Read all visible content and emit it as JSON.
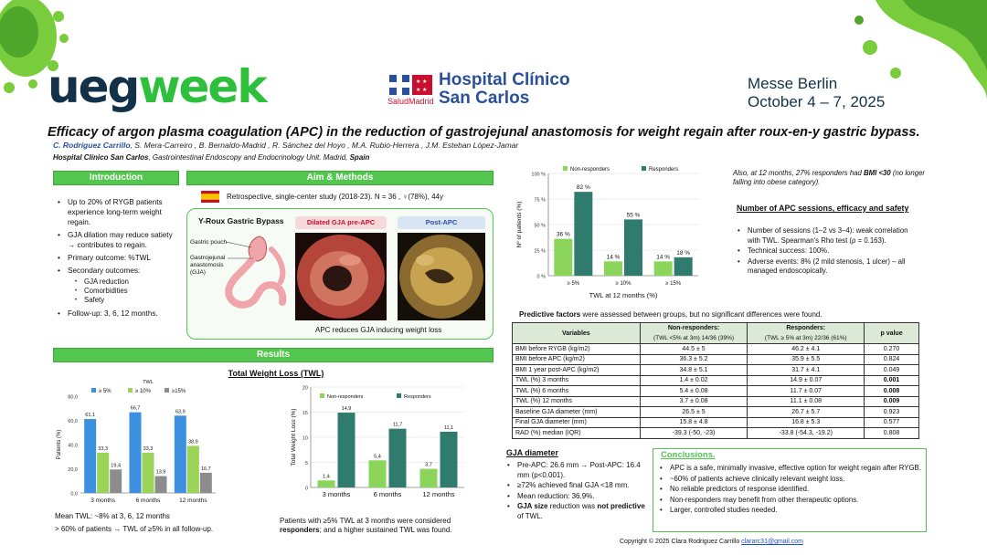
{
  "header": {
    "logo_part1": "ueg",
    "logo_part2": "week",
    "hospital_line1": "Hospital Clínico",
    "hospital_line2": "San Carlos",
    "hospital_sub": "SaludMadrid",
    "event_line1": "Messe Berlin",
    "event_line2": "October 4 – 7, 2025"
  },
  "title": "Efficacy of argon plasma coagulation (APC) in the reduction of gastrojejunal anastomosis for weight regain after roux-en-y gastric bypass.",
  "authors": {
    "first": "C. Rodríguez Carrillo",
    "rest": ", S. Mera-Carreiro , B. Bernaldo-Madrid , R. Sánchez del Hoyo , M.A. Rubio-Herrera , J.M. Esteban López-Jamar"
  },
  "affiliation": {
    "hospital": "Hospital Clínico San Carlos",
    "middle": ", Gastrointestinal Endoscopy and Endocrinology Unit. Madrid, ",
    "country": "Spain"
  },
  "intro": {
    "heading": "Introduction",
    "bullets": [
      "Up to 20% of RYGB patients experience long-term weight regain.",
      "GJA dilation may reduce satiety → contributes to regain.",
      "Primary outcome: %TWL",
      "Secondary outcomes:"
    ],
    "sub_bullets": [
      "GJA reduction",
      "Comorbidities",
      "Safety"
    ],
    "followup": "Follow-up: 3, 6, 12 months."
  },
  "aims": {
    "heading": "Aim & Methods",
    "text": "Retrospective, single-center study (2018-23). N = 36 , ♀(78%), 44y",
    "figure_label1": "Y-Roux Gastric Bypass",
    "figure_label2": "Dilated GJA pre-APC",
    "figure_label3": "Post-APC",
    "pouch_label": "Gastric pouch",
    "gja_label": "Gastrojejunal anastomosis (GJA)",
    "caption": "APC reduces GJA inducing weight loss"
  },
  "results": {
    "heading": "Results",
    "twl_title": "Total Weight Loss (TWL)",
    "mean_twl": "Mean TWL: ~8% at 3, 6, 12 months",
    "gt60": "> 60% of patients → TWL of ≥5% in all follow-up.",
    "responders_note_1": "Patients with ≥5% TWL at 3 months were considered",
    "responders_note_bold": "responders",
    "responders_note_2": "; and a higher sustained TWL was found."
  },
  "chart_data": [
    {
      "type": "bar",
      "title": "TWL",
      "categories": [
        "3 months",
        "6 months",
        "12 months"
      ],
      "series": [
        {
          "name": "≥ 5%",
          "values": [
            61.1,
            66.7,
            63.9
          ],
          "color": "#3d8fe0"
        },
        {
          "name": "≥ 10%",
          "values": [
            33.3,
            33.3,
            38.9
          ],
          "color": "#9ad356"
        },
        {
          "name": "≥15%",
          "values": [
            19.4,
            13.9,
            16.7
          ],
          "color": "#8c8c8c"
        }
      ],
      "ylabel": "Patients (%)",
      "ylim": [
        0,
        80
      ],
      "yticks": [
        "0,0",
        "20,0",
        "40,0",
        "60,0",
        "80,0"
      ],
      "data_labels": [
        [
          "61,1",
          "66,7",
          "63,9"
        ],
        [
          "33,3",
          "33,3",
          "38,9"
        ],
        [
          "19,4",
          "13,9",
          "16,7"
        ]
      ]
    },
    {
      "type": "bar",
      "categories": [
        "3 months",
        "6 months",
        "12 months"
      ],
      "series": [
        {
          "name": "Non-responders",
          "values": [
            1.4,
            5.4,
            3.7
          ],
          "color": "#8bd65a"
        },
        {
          "name": "Responders",
          "values": [
            14.9,
            11.7,
            11.1
          ],
          "color": "#2f7b6e"
        }
      ],
      "ylabel": "Total Weight Loss (%)",
      "ylim": [
        0,
        20
      ],
      "yticks": [
        "0",
        "5",
        "10",
        "15",
        "20"
      ],
      "data_labels": [
        [
          "1,4",
          "5,4",
          "3,7"
        ],
        [
          "14,9",
          "11,7",
          "11,1"
        ]
      ]
    },
    {
      "type": "bar",
      "categories": [
        "≥ 5%",
        "≥ 10%",
        "≥ 15%"
      ],
      "series": [
        {
          "name": "Non-responders",
          "values": [
            36,
            14,
            14
          ],
          "color": "#8bd65a"
        },
        {
          "name": "Responders",
          "values": [
            82,
            55,
            18
          ],
          "color": "#2f7b6e"
        }
      ],
      "xlabel": "TWL at 12 months (%)",
      "ylabel": "Nº of patients (%)",
      "ylim": [
        0,
        100
      ],
      "yticks": [
        "0 %",
        "25 %",
        "50 %",
        "75 %",
        "100 %"
      ],
      "data_labels": [
        [
          "36 %",
          "14 %",
          "14 %"
        ],
        [
          "82 %",
          "55 %",
          "18 %"
        ]
      ]
    }
  ],
  "right": {
    "bmi_note_1": "Also, at 12 months, 27% responders had ",
    "bmi_note_bold": "BMI <30",
    "bmi_note_2": "(no longer falling into obese category).",
    "sessions_heading": "Number of APC sessions, efficacy and safety",
    "sessions_bullets": [
      "Number of sessions (1–2 vs 3–4): weak correlation with TWL. Spearman's Rho test (ρ = 0.163).",
      "Technical success: 100%.",
      "Adverse events: 8% (2 mild stenosis, 1 ulcer) – all managed endoscopically."
    ],
    "predictive_bold": "Predictive factors",
    "predictive_rest": " were assessed between groups, but no significant differences were found."
  },
  "table": {
    "col_variables": "Variables",
    "col_nonresp": "Non-responders:",
    "col_nonresp_sub": "(TWL <5% at 3m) 14/36 (39%)",
    "col_resp": "Responders:",
    "col_resp_sub": "(TWL ≥ 5% at 3m) 22/36 (61%)",
    "col_p": "p value",
    "rows": [
      [
        "BMI before RYGB (kg/m2)",
        "44.5 ± 5",
        "46.2 ± 4.1",
        "0.270"
      ],
      [
        "BMI before APC (kg/m2)",
        "36.3 ± 5.2",
        "35.9 ± 5.5",
        "0.824"
      ],
      [
        "BMI 1 year post-APC (kg/m2)",
        "34.8 ± 5.1",
        "31.7 ± 4.1",
        "0.049"
      ],
      [
        "TWL (%) 3 months",
        "1.4 ± 0.02",
        "14.9 ± 0.07",
        "0.001"
      ],
      [
        "TWL (%) 6 months",
        "5.4 ± 0.08",
        "11.7 ± 0.07",
        "0.008"
      ],
      [
        "TWL (%) 12 months",
        "3.7 ± 0.08",
        "11.1 ± 0.08",
        "0.009"
      ],
      [
        "Baseline GJA diameter (mm)",
        "26.5 ± 5",
        "26.7 ± 5.7",
        "0.923"
      ],
      [
        "Final GJA diameter (mm)",
        "15.8 ± 4.8",
        "16.8 ± 5.3",
        "0.577"
      ],
      [
        "RAD (%) median (IQR)",
        "-39.3 (-50, -23)",
        "-33.8 (-54.3, -19.2)",
        "0.808"
      ]
    ]
  },
  "gja": {
    "heading": "GJA diameter",
    "bullets": [
      "Pre-APC: 26.6 mm → Post-APC: 16.4 mm (p<0.001).",
      "≥72% achieved final GJA <18 mm.",
      "Mean reduction: 36.9%."
    ],
    "last_bold1": "GJA size",
    "last_mid": " reduction was ",
    "last_bold2": "not predictive",
    "last_end": " of TWL."
  },
  "conclusions": {
    "heading": "Conclusions.",
    "bullets": [
      "APC is a safe, minimally invasive, effective option for weight regain after RYGB.",
      "~60% of patients achieve clinically relevant weight loss.",
      "No reliable predictors of response identified.",
      "Non-responders may benefit from other therapeutic options.",
      "Larger, controlled studies needed."
    ]
  },
  "footer": {
    "copyright": "Copyright © 2025 Clara Rodriguez Carrillo ",
    "email": "clararc31@gmail.com"
  },
  "colors": {
    "accent_green": "#53c64f",
    "brand_blue": "#2a4f9b",
    "dark_navy": "#13324a"
  }
}
